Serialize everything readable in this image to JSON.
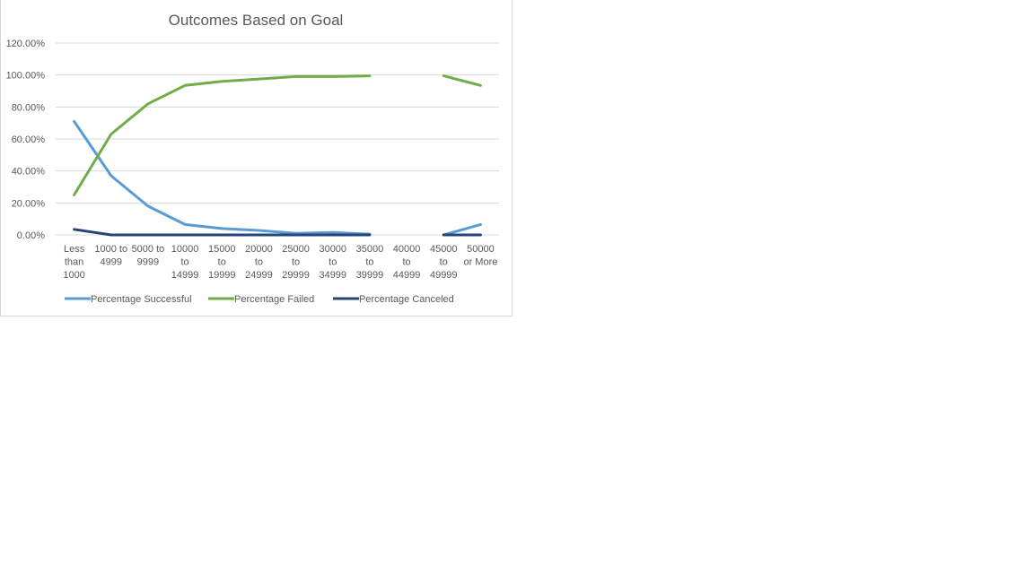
{
  "chart_data": {
    "type": "line",
    "title": "Outcomes Based on Goal",
    "xlabel": "",
    "ylabel": "",
    "ylim": [
      0,
      1.2
    ],
    "y_ticks": [
      0,
      0.2,
      0.4,
      0.6,
      0.8,
      1.0,
      1.2
    ],
    "y_tick_labels": [
      "0.00%",
      "20.00%",
      "40.00%",
      "60.00%",
      "80.00%",
      "100.00%",
      "120.00%"
    ],
    "grid": true,
    "legend_position": "bottom",
    "categories": [
      [
        "Less",
        "than",
        "1000"
      ],
      [
        "1000 to",
        "4999"
      ],
      [
        "5000 to",
        "9999"
      ],
      [
        "10000",
        "to",
        "14999"
      ],
      [
        "15000",
        "to",
        "19999"
      ],
      [
        "20000",
        "to",
        "24999"
      ],
      [
        "25000",
        "to",
        "29999"
      ],
      [
        "30000",
        "to",
        "34999"
      ],
      [
        "35000",
        "to",
        "39999"
      ],
      [
        "40000",
        "to",
        "44999"
      ],
      [
        "45000",
        "to",
        "49999"
      ],
      [
        "50000",
        "or More"
      ]
    ],
    "series": [
      {
        "name": "Percentage Successful",
        "color": "#5b9bd5",
        "values": [
          0.71,
          0.37,
          0.18,
          0.065,
          0.04,
          0.028,
          0.01,
          0.015,
          0.005,
          null,
          0.0,
          0.065
        ]
      },
      {
        "name": "Percentage Failed",
        "color": "#70ad47",
        "values": [
          0.25,
          0.63,
          0.82,
          0.935,
          0.96,
          0.975,
          0.99,
          0.99,
          0.995,
          null,
          0.995,
          0.935
        ]
      },
      {
        "name": "Percentage Canceled",
        "color": "#264478",
        "values": [
          0.035,
          0.0,
          0.0,
          0.0,
          0.0,
          0.0,
          0.0,
          0.0,
          0.0,
          null,
          0.0,
          0.0
        ]
      }
    ]
  }
}
